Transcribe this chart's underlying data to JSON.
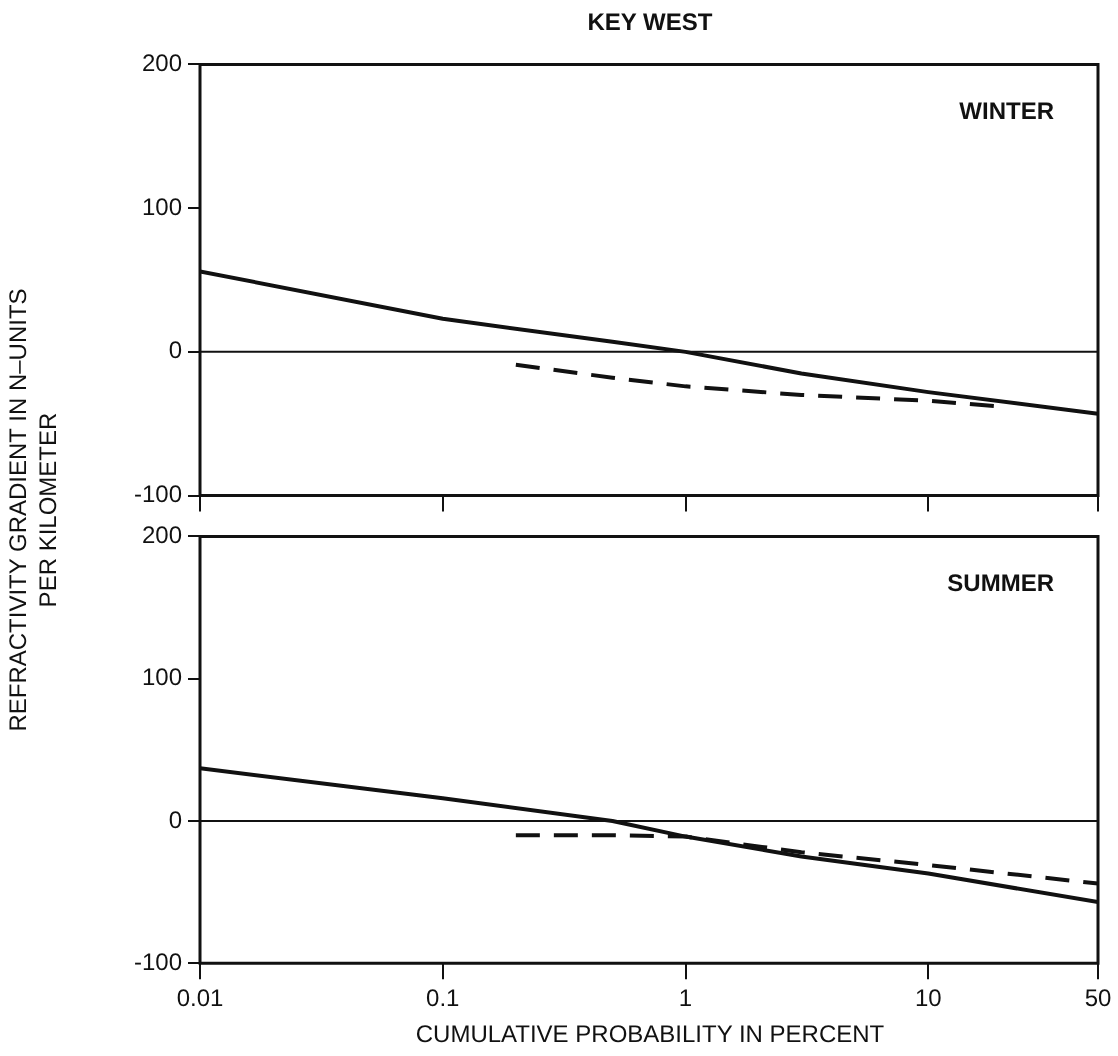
{
  "chart_data": [
    {
      "type": "line",
      "title": "KEY WEST",
      "ylabel": "REFRACTIVITY GRADIENT IN N–UNITS PER KILOMETER",
      "annotations": [
        "WINTER"
      ],
      "log": "x",
      "xlim": [
        0.01,
        50
      ],
      "xticks": [
        {
          "value": 0.01,
          "label": null
        },
        {
          "value": 0.1,
          "label": null
        },
        {
          "value": 1,
          "label": null
        },
        {
          "value": 10,
          "label": null
        },
        {
          "value": 50,
          "label": null
        }
      ],
      "ylim": [
        -100,
        200
      ],
      "yticks": [
        -100,
        0,
        100,
        200
      ],
      "tick_labels": "y",
      "grid": false,
      "legend": false,
      "marker": "none",
      "ref_lines": [
        {
          "axis": "y",
          "value": 0,
          "color": "#111111"
        }
      ],
      "series": [
        {
          "color": "#111111",
          "line_style": "solid",
          "x": [
            0.01,
            0.1,
            0.5,
            1,
            3,
            10,
            50
          ],
          "values": [
            56,
            23,
            7,
            0,
            -15,
            -28,
            -43
          ]
        },
        {
          "color": "#111111",
          "line_style": "dashed",
          "x": [
            0.2,
            0.5,
            1,
            3,
            10,
            20
          ],
          "values": [
            -9,
            -18,
            -24,
            -30,
            -34,
            -38
          ]
        }
      ]
    },
    {
      "type": "line",
      "xlabel": "CUMULATIVE PROBABILITY IN PERCENT",
      "annotations": [
        "SUMMER"
      ],
      "log": "x",
      "xlim": [
        0.01,
        50
      ],
      "xticks": [
        0.01,
        0.1,
        1,
        10,
        50
      ],
      "ylim": [
        -100,
        200
      ],
      "yticks": [
        -100,
        0,
        100,
        200
      ],
      "grid": false,
      "legend": false,
      "marker": "none",
      "ref_lines": [
        {
          "axis": "y",
          "value": 0,
          "color": "#111111"
        }
      ],
      "series": [
        {
          "color": "#111111",
          "line_style": "solid",
          "x": [
            0.01,
            0.1,
            0.5,
            1,
            3,
            10,
            50
          ],
          "values": [
            37,
            16,
            0,
            -11,
            -25,
            -37,
            -57
          ]
        },
        {
          "color": "#111111",
          "line_style": "dashed",
          "x": [
            0.2,
            0.5,
            1,
            3,
            10,
            50
          ],
          "values": [
            -10,
            -10,
            -11,
            -22,
            -31,
            -44
          ]
        }
      ]
    }
  ]
}
